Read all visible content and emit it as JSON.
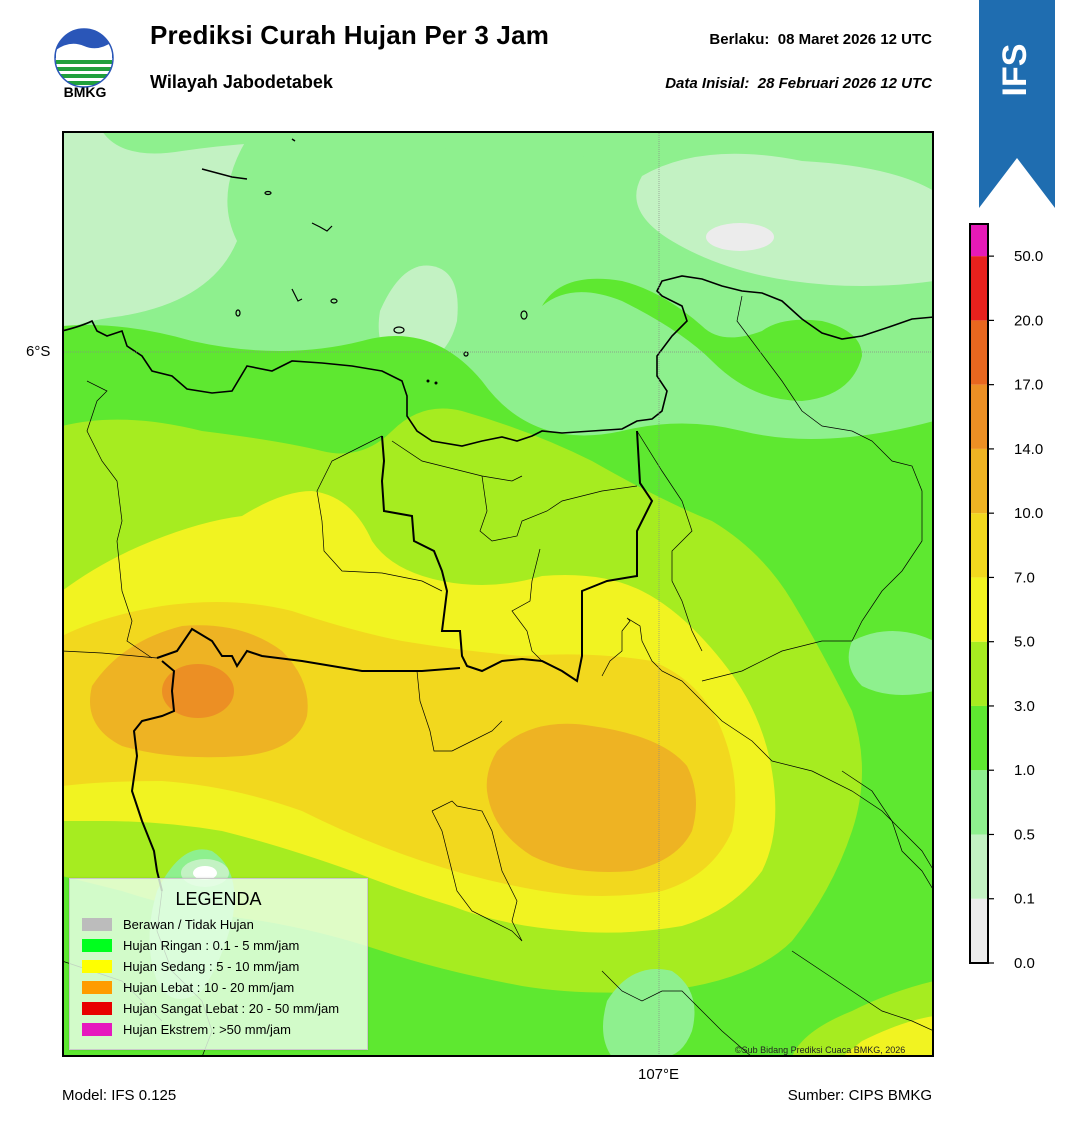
{
  "header": {
    "title": "Prediksi Curah Hujan Per 3 Jam",
    "subtitle": "Wilayah Jabodetabek",
    "valid": "Berlaku:  08 Maret 2026 12 UTC",
    "initial": "Data Inisial:  28 Februari 2026 12 UTC",
    "logo_text": "BMKG",
    "badge_text": "IFS"
  },
  "map": {
    "lat_label": "6°S",
    "lon_label": "107°E",
    "credit": "©Sub Bidang Prediksi Cuaca BMKG, 2026"
  },
  "footer": {
    "model": "Model: IFS 0.125",
    "source": "Sumber: CIPS BMKG"
  },
  "legend": {
    "title": "LEGENDA",
    "items": [
      {
        "label": "Berawan / Tidak Hujan",
        "color": "#bcbcbc"
      },
      {
        "label": "Hujan Ringan : 0.1 - 5 mm/jam",
        "color": "#00ff1e"
      },
      {
        "label": "Hujan Sedang : 5 - 10 mm/jam",
        "color": "#ffff00"
      },
      {
        "label": "Hujan Lebat : 10 - 20 mm/jam",
        "color": "#ff9c00"
      },
      {
        "label": "Hujan Sangat Lebat : 20 - 50 mm/jam",
        "color": "#e80000"
      },
      {
        "label": "Hujan Ekstrem : >50 mm/jam",
        "color": "#e619be"
      }
    ]
  },
  "colorbar": {
    "ticks": [
      "0.0",
      "0.1",
      "0.5",
      "1.0",
      "3.0",
      "5.0",
      "7.0",
      "10.0",
      "14.0",
      "17.0",
      "20.0",
      "50.0"
    ],
    "colors": [
      "#ececec",
      "#c3f2c3",
      "#8ef08e",
      "#5ee830",
      "#a6ec20",
      "#f1f321",
      "#f2d81e",
      "#eeb323",
      "#ec8f24",
      "#e8671f",
      "#e8211d",
      "#e61ab7"
    ]
  }
}
